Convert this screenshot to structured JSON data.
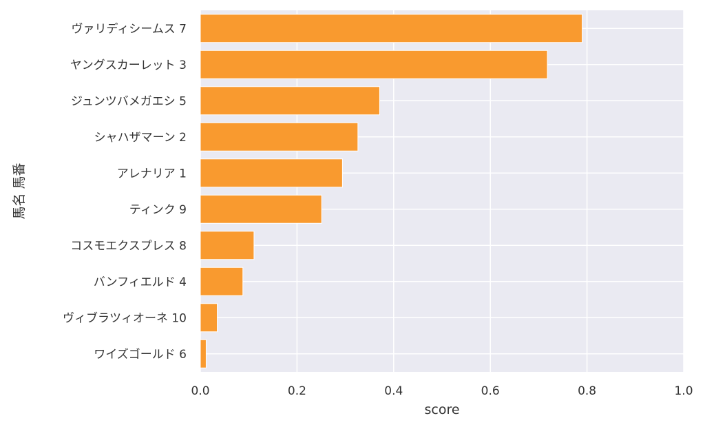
{
  "chart_data": {
    "type": "bar",
    "orientation": "horizontal",
    "categories": [
      "ヴァリディシームス 7",
      "ヤングスカーレット 3",
      "ジュンツバメガエシ 5",
      "シャハザマーン 2",
      "アレナリア 1",
      "ティンク 9",
      "コスモエクスプレス 8",
      "バンフィエルド 4",
      "ヴィブラツィオーネ 10",
      "ワイズゴールド 6"
    ],
    "values": [
      0.79,
      0.718,
      0.371,
      0.326,
      0.294,
      0.251,
      0.111,
      0.088,
      0.035,
      0.012
    ],
    "xlabel": "score",
    "ylabel": "馬名 馬番",
    "xlim": [
      0.0,
      1.0
    ],
    "xticks": [
      "0.0",
      "0.2",
      "0.4",
      "0.6",
      "0.8",
      "1.0"
    ],
    "grid": true,
    "colors": {
      "bar": "#f99a2f",
      "bar_edge": "#ffffff",
      "plot_background": "#eaeaf2",
      "grid": "#ffffff",
      "text": "#333333"
    }
  }
}
